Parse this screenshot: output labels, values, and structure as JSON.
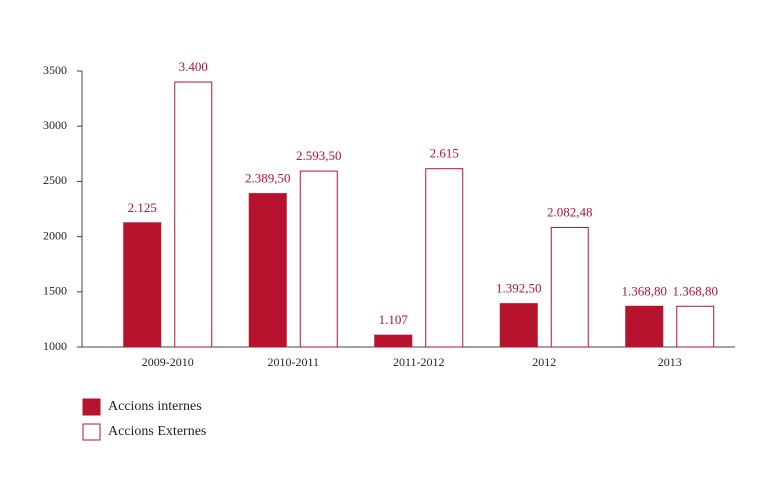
{
  "chart_data": {
    "type": "bar",
    "categories": [
      "2009-2010",
      "2010-2011",
      "2011-2012",
      "2012",
      "2013"
    ],
    "series": [
      {
        "name": "Accions internes",
        "color": "#b8132e",
        "values": [
          2125,
          2389.5,
          1107,
          1392.5,
          1368.8
        ],
        "value_labels": [
          "2.125",
          "2.389,50",
          "1.107",
          "1.392,50",
          "1.368,80"
        ]
      },
      {
        "name": "Accions Externes",
        "color": "#ffffff",
        "values": [
          3400,
          2593.5,
          2615,
          2082.48,
          1368.8
        ],
        "value_labels": [
          "3.400",
          "2.593,50",
          "2.615",
          "2.082,48",
          "1.368,80"
        ]
      }
    ],
    "ylim": [
      1000,
      3500
    ],
    "yticks": [
      1000,
      1500,
      2000,
      2500,
      3000,
      3500
    ],
    "grid": false,
    "legend": "bottom-left"
  }
}
